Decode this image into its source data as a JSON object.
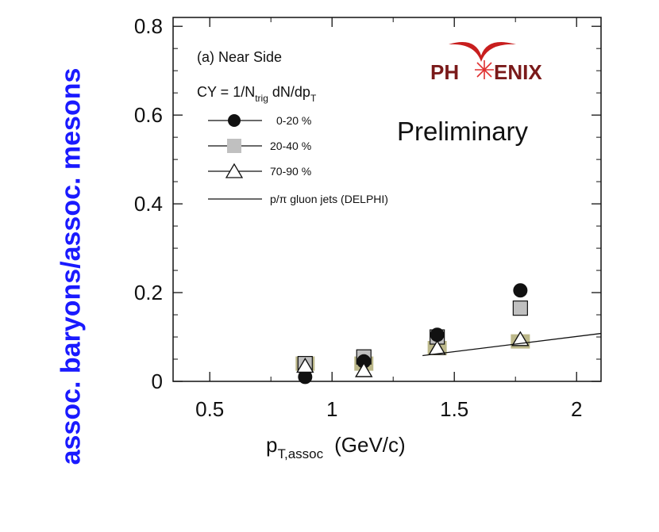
{
  "y_axis_label": "assoc. baryons/assoc. mesons",
  "x_axis_label": {
    "main": "p",
    "sub": "T,assoc",
    "unit": "(GeV/c)"
  },
  "panel_label": "(a) Near Side",
  "cy_formula": {
    "prefix": "CY = 1/N",
    "sub1": "trig",
    "middle": " dN/dp",
    "sub2": "T"
  },
  "logo_text": {
    "left": "PH",
    "right": "ENIX"
  },
  "preliminary_label": "Preliminary",
  "colors": {
    "ylabel": "#1a1aff",
    "olive": "#bcb88a",
    "gray": "#c0c0c0",
    "logo": "#7a1a1a",
    "logo_star": "#e03030"
  },
  "chart_data": {
    "type": "scatter",
    "xlabel": "p_T,assoc (GeV/c)",
    "ylabel": "assoc. baryons/assoc. mesons",
    "xlim": [
      0.35,
      2.1
    ],
    "ylim": [
      0,
      0.82
    ],
    "x_ticks": [
      "0.5",
      "1",
      "1.5",
      "2"
    ],
    "x_tick_values": [
      0.5,
      1,
      1.5,
      2
    ],
    "y_ticks": [
      "0",
      "0.2",
      "0.4",
      "0.6",
      "0.8"
    ],
    "y_tick_values": [
      0,
      0.2,
      0.4,
      0.6,
      0.8
    ],
    "legend_position": "top-left",
    "series": [
      {
        "name": "0-20 %",
        "marker": "filled-circle",
        "x": [
          0.89,
          1.13,
          1.43,
          1.77
        ],
        "y": [
          0.01,
          0.045,
          0.105,
          0.205
        ]
      },
      {
        "name": "20-40 %",
        "marker": "gray-square",
        "x": [
          0.89,
          1.13,
          1.43,
          1.77
        ],
        "y": [
          0.04,
          0.055,
          0.1,
          0.165
        ]
      },
      {
        "name": "70-90 %",
        "marker": "open-triangle",
        "x": [
          0.89,
          1.13,
          1.43,
          1.77
        ],
        "y": [
          0.035,
          0.025,
          0.075,
          0.095
        ]
      },
      {
        "name": "p/π gluon jets (DELPHI)",
        "marker": "line",
        "x": [
          1.37,
          2.1
        ],
        "y": [
          0.058,
          0.108
        ]
      }
    ],
    "olive_boxes": {
      "x": [
        0.89,
        1.13,
        1.43,
        1.77
      ],
      "y": [
        0.04,
        0.04,
        0.075,
        0.09
      ]
    }
  }
}
